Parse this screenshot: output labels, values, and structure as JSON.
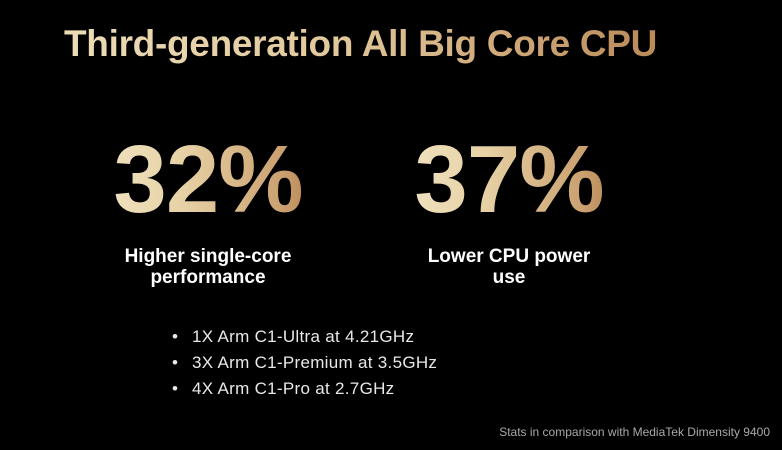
{
  "slide": {
    "title": "Third-generation All Big Core CPU",
    "stats": [
      {
        "value": "32%",
        "caption_line1": "Higher single-core",
        "caption_line2": "performance"
      },
      {
        "value": "37%",
        "caption_line1": "Lower CPU power",
        "caption_line2": "use"
      }
    ],
    "bullet_symbol": "•",
    "bullets": [
      "1X Arm C1-Ultra at 4.21GHz",
      "3X Arm C1-Premium at 3.5GHz",
      "4X Arm C1-Pro at 2.7GHz"
    ],
    "footnote": "Stats in comparison with MediaTek Dimensity 9400"
  },
  "colors": {
    "background": "#000000",
    "gold_light": "#ecdcb7",
    "gold_dark": "#b98a58",
    "caption": "#ffffff",
    "bullet_text": "#e8e8e8",
    "footnote": "#a9a9a9"
  }
}
